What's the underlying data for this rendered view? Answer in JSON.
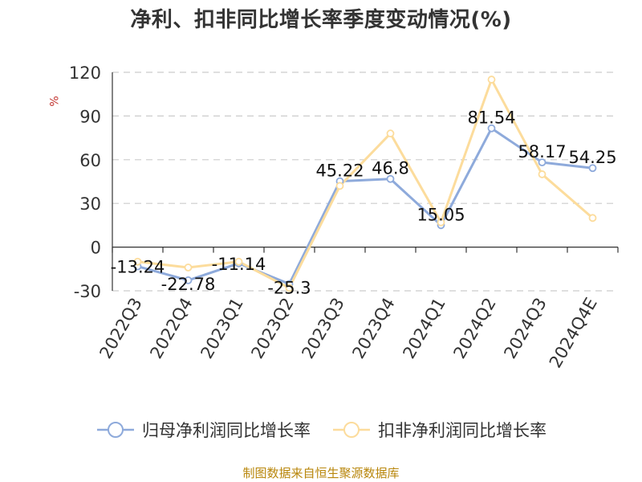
{
  "title": "净利、扣非同比增长率季度变动情况(%)",
  "y_unit": "%",
  "source": "制图数据来自恒生聚源数据库",
  "colors": {
    "series1": "#8eaadb",
    "series2": "#fcdc9c"
  },
  "chart_data": {
    "type": "line",
    "categories": [
      "2022Q3",
      "2022Q4",
      "2023Q1",
      "2023Q2",
      "2023Q3",
      "2023Q4",
      "2024Q1",
      "2024Q2",
      "2024Q3",
      "2024Q4E"
    ],
    "ylim": [
      -30,
      120
    ],
    "yticks": [
      -30,
      0,
      30,
      60,
      90,
      120
    ],
    "grid": true,
    "legend_position": "bottom",
    "series": [
      {
        "name": "归母净利润同比增长率",
        "values": [
          -13.24,
          -22.78,
          -11.14,
          -25.3,
          45.22,
          46.8,
          15.05,
          81.54,
          58.17,
          54.25
        ],
        "labels": [
          "-13.24",
          "-22.78",
          "-11.14",
          "-25.3",
          "45.22",
          "46.8",
          "15.05",
          "81.54",
          "58.17",
          "54.25"
        ]
      },
      {
        "name": "扣非净利润同比增长率",
        "values": [
          -10,
          -14,
          -10,
          -28,
          42,
          78,
          17,
          115,
          50,
          20
        ]
      }
    ]
  }
}
